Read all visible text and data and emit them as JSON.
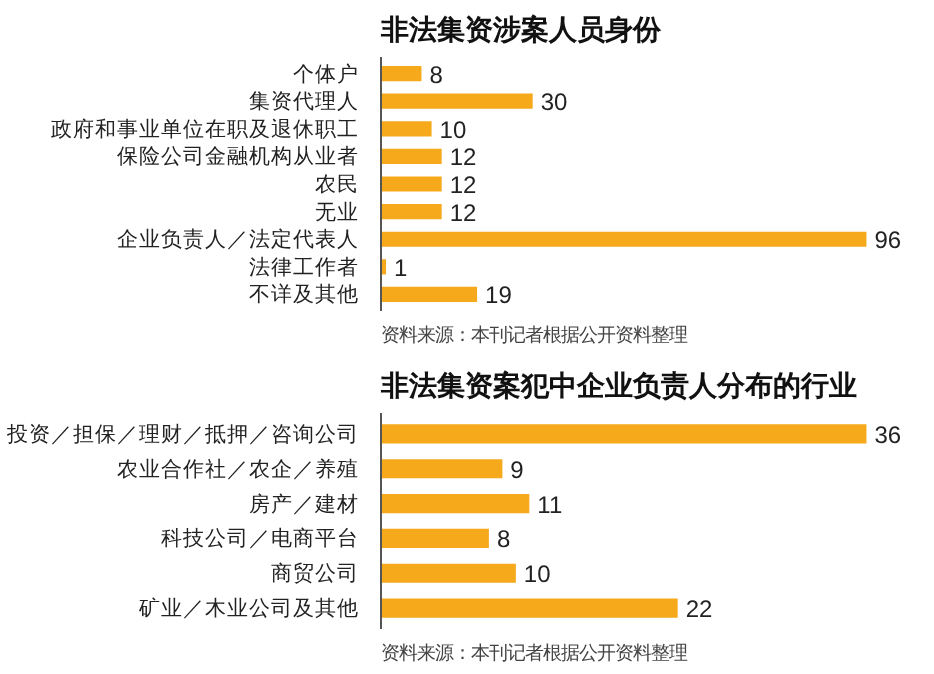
{
  "chart_data": [
    {
      "type": "bar",
      "orientation": "horizontal",
      "title": "非法集资涉案人员身份",
      "categories": [
        "个体户",
        "集资代理人",
        "政府和事业单位在职及退休职工",
        "保险公司金融机构从业者",
        "农民",
        "无业",
        "企业负责人／法定代表人",
        "法律工作者",
        "不详及其他"
      ],
      "values": [
        8,
        30,
        10,
        12,
        12,
        12,
        96,
        1,
        19
      ],
      "color": "#f5a91b",
      "data_labels": true,
      "grid": false,
      "legend": false,
      "tick_labels": "y",
      "annotations": [
        "资料来源：本刊记者根据公开资料整理"
      ]
    },
    {
      "type": "bar",
      "orientation": "horizontal",
      "title": "非法集资案犯中企业负责人分布的行业",
      "categories": [
        "投资／担保／理财／抵押／咨询公司",
        "农业合作社／农企／养殖",
        "房产／建材",
        "科技公司／电商平台",
        "商贸公司",
        "矿业／木业公司及其他"
      ],
      "values": [
        36,
        9,
        11,
        8,
        10,
        22
      ],
      "color": "#f5a91b",
      "data_labels": true,
      "grid": false,
      "legend": false,
      "tick_labels": "y",
      "annotations": [
        "资料来源：本刊记者根据公开资料整理"
      ]
    }
  ]
}
